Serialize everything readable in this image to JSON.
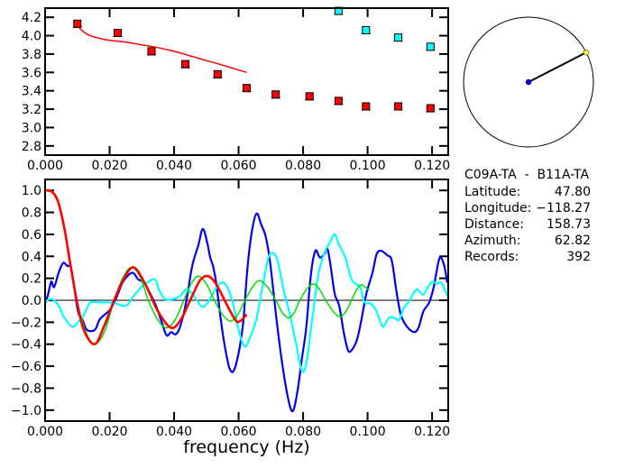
{
  "chart_data": [
    {
      "type": "scatter",
      "title": "",
      "xlabel": "",
      "ylabel": "",
      "xlim": [
        0,
        0.125
      ],
      "ylim": [
        2.7,
        4.3
      ],
      "xticks": [
        "0.000",
        "0.020",
        "0.040",
        "0.060",
        "0.080",
        "0.100",
        "0.120"
      ],
      "yticks": [
        "2.8",
        "3.0",
        "3.2",
        "3.4",
        "3.6",
        "3.8",
        "4.0",
        "4.2"
      ],
      "series": [
        {
          "name": "red-points",
          "color": "#ff0000",
          "marker": "square",
          "x": [
            0.01,
            0.0225,
            0.033,
            0.0435,
            0.0535,
            0.0625,
            0.0715,
            0.082,
            0.091,
            0.0995,
            0.1095,
            0.1195
          ],
          "y": [
            4.13,
            4.03,
            3.83,
            3.69,
            3.58,
            3.43,
            3.36,
            3.34,
            3.29,
            3.23,
            3.23,
            3.21
          ]
        },
        {
          "name": "cyan-points",
          "color": "#00ffff",
          "marker": "square",
          "x": [
            0.091,
            0.0995,
            0.1095,
            0.1195
          ],
          "y": [
            4.27,
            4.06,
            3.98,
            3.88
          ]
        },
        {
          "name": "red-curve",
          "color": "#ff0000",
          "marker": "line",
          "x": [
            0.0105,
            0.012,
            0.014,
            0.017,
            0.02,
            0.025,
            0.03,
            0.035,
            0.04,
            0.045,
            0.05,
            0.055,
            0.0625
          ],
          "y": [
            4.09,
            4.04,
            4.0,
            3.97,
            3.95,
            3.93,
            3.9,
            3.87,
            3.83,
            3.78,
            3.73,
            3.68,
            3.6
          ]
        }
      ]
    },
    {
      "type": "line",
      "title": "",
      "xlabel": "frequency (Hz)",
      "ylabel": "",
      "xlim": [
        0,
        0.125
      ],
      "ylim": [
        -1.1,
        1.1
      ],
      "xticks": [
        "0.000",
        "0.020",
        "0.040",
        "0.060",
        "0.080",
        "0.100",
        "0.120"
      ],
      "yticks": [
        "−1.0",
        "−0.8",
        "−0.6",
        "−0.4",
        "−0.2",
        "0.0",
        "0.2",
        "0.4",
        "0.6",
        "0.8",
        "1.0"
      ],
      "series": [
        {
          "name": "blue",
          "color": "#0000ee",
          "x": [
            0,
            0.0009,
            0.0019,
            0.0028,
            0.0042,
            0.0056,
            0.007,
            0.0079,
            0.0088,
            0.0102,
            0.0116,
            0.013,
            0.0154,
            0.0168,
            0.0181,
            0.02,
            0.0219,
            0.0242,
            0.027,
            0.0289,
            0.0307,
            0.0326,
            0.0344,
            0.0363,
            0.0377,
            0.0391,
            0.0405,
            0.0419,
            0.0437,
            0.0456,
            0.0475,
            0.0489,
            0.0503,
            0.0512,
            0.0521,
            0.0531,
            0.0545,
            0.0558,
            0.0572,
            0.0585,
            0.06,
            0.0614,
            0.0628,
            0.0642,
            0.0656,
            0.067,
            0.0684,
            0.0698,
            0.0717,
            0.0735,
            0.0754,
            0.0768,
            0.0782,
            0.0796,
            0.081,
            0.0824,
            0.0838,
            0.0852,
            0.0866,
            0.0875,
            0.0884,
            0.0898,
            0.0912,
            0.0926,
            0.094,
            0.0954,
            0.0968,
            0.0982,
            0.0996,
            0.1015,
            0.1028,
            0.1042,
            0.1061,
            0.1075,
            0.1089,
            0.1103,
            0.1122,
            0.1145,
            0.1159,
            0.1173,
            0.1191,
            0.1205,
            0.1219,
            0.1227,
            0.1238,
            0.1247
          ],
          "y": [
            -0.03,
            0.05,
            0.17,
            0.12,
            0.25,
            0.34,
            0.31,
            0.31,
            0.17,
            -0.1,
            -0.18,
            -0.27,
            -0.27,
            -0.18,
            -0.14,
            -0.09,
            0.01,
            0.17,
            0.25,
            0.19,
            0.16,
            0.06,
            -0.05,
            -0.21,
            -0.32,
            -0.29,
            -0.31,
            -0.24,
            -0.02,
            0.31,
            0.5,
            0.65,
            0.52,
            0.39,
            0.31,
            0.15,
            -0.18,
            -0.43,
            -0.62,
            -0.64,
            -0.48,
            -0.21,
            0.31,
            0.64,
            0.79,
            0.69,
            0.58,
            0.34,
            -0.16,
            -0.57,
            -0.9,
            -1.01,
            -0.84,
            -0.54,
            -0.24,
            0.23,
            0.45,
            0.39,
            0.42,
            0.47,
            0.34,
            0.06,
            -0.05,
            -0.29,
            -0.46,
            -0.44,
            -0.35,
            -0.16,
            0.06,
            0.25,
            0.42,
            0.45,
            0.41,
            0.36,
            0.09,
            -0.13,
            -0.24,
            -0.29,
            -0.24,
            -0.1,
            -0.02,
            0.12,
            0.34,
            0.39,
            0.31,
            0.16
          ]
        },
        {
          "name": "cyan",
          "color": "#00ffff",
          "x": [
            0,
            0.0023,
            0.0042,
            0.006,
            0.0084,
            0.0102,
            0.0121,
            0.014,
            0.0168,
            0.0195,
            0.0219,
            0.0251,
            0.0275,
            0.0298,
            0.0316,
            0.034,
            0.0354,
            0.0372,
            0.0396,
            0.0419,
            0.0437,
            0.0456,
            0.0475,
            0.0489,
            0.0507,
            0.0526,
            0.0545,
            0.0563,
            0.0582,
            0.06,
            0.0619,
            0.0638,
            0.0656,
            0.0675,
            0.0693,
            0.0707,
            0.0721,
            0.074,
            0.0759,
            0.0777,
            0.0796,
            0.081,
            0.0828,
            0.0847,
            0.0866,
            0.0884,
            0.0898,
            0.0912,
            0.0931,
            0.0949,
            0.0963,
            0.0977,
            0.0991,
            0.101,
            0.1028,
            0.1047,
            0.1066,
            0.1084,
            0.1098,
            0.1112,
            0.1126,
            0.114,
            0.1154,
            0.1173,
            0.1187,
            0.1201,
            0.1215,
            0.1229,
            0.1247
          ],
          "y": [
            -0.01,
            0.01,
            -0.05,
            -0.16,
            -0.24,
            -0.2,
            -0.13,
            -0.02,
            -0.02,
            -0.02,
            -0.03,
            -0.05,
            0.04,
            0.12,
            0.16,
            0.19,
            0.09,
            0.01,
            0.01,
            0.04,
            0.1,
            0.06,
            -0.02,
            -0.06,
            -0.01,
            0.09,
            0.16,
            0.13,
            -0.02,
            -0.27,
            -0.42,
            -0.32,
            -0.16,
            0.14,
            0.39,
            0.43,
            0.36,
            0.09,
            -0.13,
            -0.38,
            -0.64,
            -0.57,
            -0.18,
            0.23,
            0.43,
            0.53,
            0.6,
            0.5,
            0.39,
            0.2,
            0.15,
            0.12,
            -0.02,
            -0.03,
            -0.1,
            -0.24,
            -0.16,
            -0.16,
            -0.18,
            -0.07,
            -0.02,
            0.05,
            0.1,
            0.05,
            0.12,
            0.17,
            0.15,
            0.16,
            0.04
          ]
        },
        {
          "name": "green",
          "color": "#00dd00",
          "x": [
            0.0098,
            0.0125,
            0.0154,
            0.0185,
            0.0214,
            0.0242,
            0.0268,
            0.0295,
            0.032,
            0.035,
            0.0377,
            0.0405,
            0.043,
            0.0453,
            0.0475,
            0.05,
            0.0525,
            0.055,
            0.0575,
            0.0598,
            0.062,
            0.0643,
            0.0665,
            0.069,
            0.0715,
            0.0735,
            0.0755,
            0.0773,
            0.079,
            0.0811,
            0.0832,
            0.0851,
            0.087,
            0.0893,
            0.0915,
            0.0933,
            0.095,
            0.0965,
            0.098,
            0.1005
          ],
          "y": [
            0.0,
            -0.28,
            -0.4,
            -0.28,
            0.0,
            0.21,
            0.3,
            0.21,
            0.0,
            -0.18,
            -0.25,
            -0.17,
            0.0,
            0.15,
            0.22,
            0.15,
            0.0,
            -0.13,
            -0.19,
            -0.13,
            0.0,
            0.12,
            0.18,
            0.12,
            0.0,
            -0.11,
            -0.16,
            -0.11,
            0.0,
            0.1,
            0.15,
            0.1,
            0.0,
            -0.1,
            -0.15,
            -0.1,
            0.0,
            0.09,
            0.14,
            0.09
          ]
        },
        {
          "name": "red",
          "color": "#ff0000",
          "x": [
            0,
            0.002,
            0.004,
            0.006,
            0.008,
            0.0098,
            0.012,
            0.0154,
            0.0185,
            0.0214,
            0.0245,
            0.0275,
            0.031,
            0.035,
            0.039,
            0.042,
            0.045,
            0.048,
            0.0505,
            0.053,
            0.056,
            0.059,
            0.0605,
            0.0625
          ],
          "y": [
            1.0,
            0.99,
            0.9,
            0.65,
            0.3,
            0.0,
            -0.27,
            -0.4,
            -0.22,
            0.0,
            0.2,
            0.3,
            0.15,
            -0.1,
            -0.25,
            -0.18,
            0.0,
            0.18,
            0.22,
            0.15,
            -0.02,
            -0.18,
            -0.19,
            -0.13
          ]
        }
      ]
    }
  ],
  "map": {
    "azimuth_deg": 62.82
  },
  "info": {
    "title": "C09A-TA  -  B11A-TA",
    "rows": [
      {
        "label": "Latitude:",
        "value": "47.80"
      },
      {
        "label": "Longitude:",
        "value": "−118.27"
      },
      {
        "label": "Distance:",
        "value": "158.73"
      },
      {
        "label": "Azimuth:",
        "value": "62.82"
      },
      {
        "label": "Records:",
        "value": "392"
      }
    ]
  }
}
